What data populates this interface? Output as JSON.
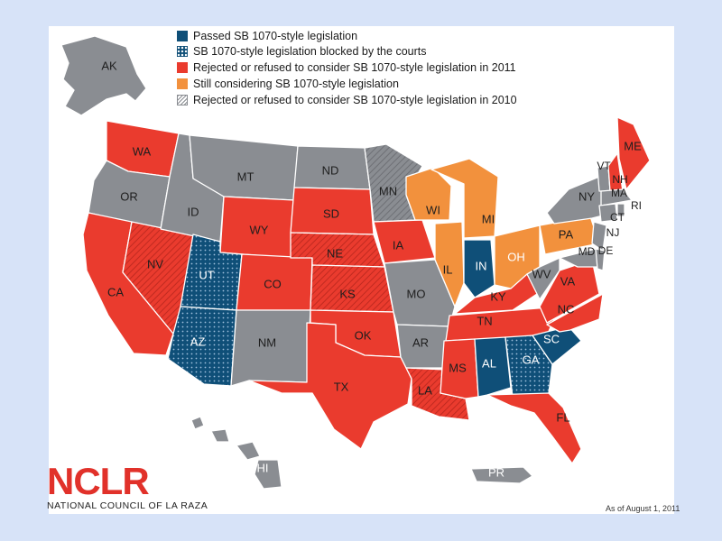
{
  "legend": [
    {
      "key": "passed",
      "label": "Passed SB 1070-style legislation",
      "color": "#0f4f78"
    },
    {
      "key": "blocked",
      "label": "SB 1070-style legislation blocked by the courts",
      "color": "#0f4f78"
    },
    {
      "key": "rej2011",
      "label": "Rejected or refused to consider SB 1070-style legislation in 2011",
      "color": "#ea3b2e"
    },
    {
      "key": "still",
      "label": "Still considering SB 1070-style legislation",
      "color": "#f2913d"
    },
    {
      "key": "rej2010",
      "label": "Rejected or refused to consider SB 1070-style legislation in 2010",
      "color": "#8a8d92"
    }
  ],
  "colors": {
    "gray": "#8a8d92",
    "red": "#ea3b2e",
    "blue": "#0f4f78",
    "orange": "#f2913d",
    "background": "#d7e3f8"
  },
  "states": {
    "AK": "AK",
    "WA": "WA",
    "OR": "OR",
    "CA": "CA",
    "NV": "NV",
    "ID": "ID",
    "MT": "MT",
    "WY": "WY",
    "UT": "UT",
    "AZ": "AZ",
    "CO": "CO",
    "NM": "NM",
    "ND": "ND",
    "SD": "SD",
    "NE": "NE",
    "KS": "KS",
    "OK": "OK",
    "TX": "TX",
    "MN": "MN",
    "IA": "IA",
    "MO": "MO",
    "AR": "AR",
    "LA": "LA",
    "WI": "WI",
    "IL": "IL",
    "MI": "MI",
    "IN": "IN",
    "OH": "OH",
    "KY": "KY",
    "TN": "TN",
    "MS": "MS",
    "AL": "AL",
    "GA": "GA",
    "FL": "FL",
    "SC": "SC",
    "NC": "NC",
    "VA": "VA",
    "WV": "WV",
    "PA": "PA",
    "NY": "NY",
    "VT": "VT",
    "NH": "NH",
    "ME": "ME",
    "MA": "MA",
    "RI": "RI",
    "CT": "CT",
    "NJ": "NJ",
    "DE": "DE",
    "MD": "MD",
    "HI": "HI",
    "PR": "PR"
  },
  "logo": {
    "name": "NCLR",
    "full_name": "NATIONAL COUNCIL OF LA RAZA"
  },
  "as_of": "As of August 1, 2011"
}
